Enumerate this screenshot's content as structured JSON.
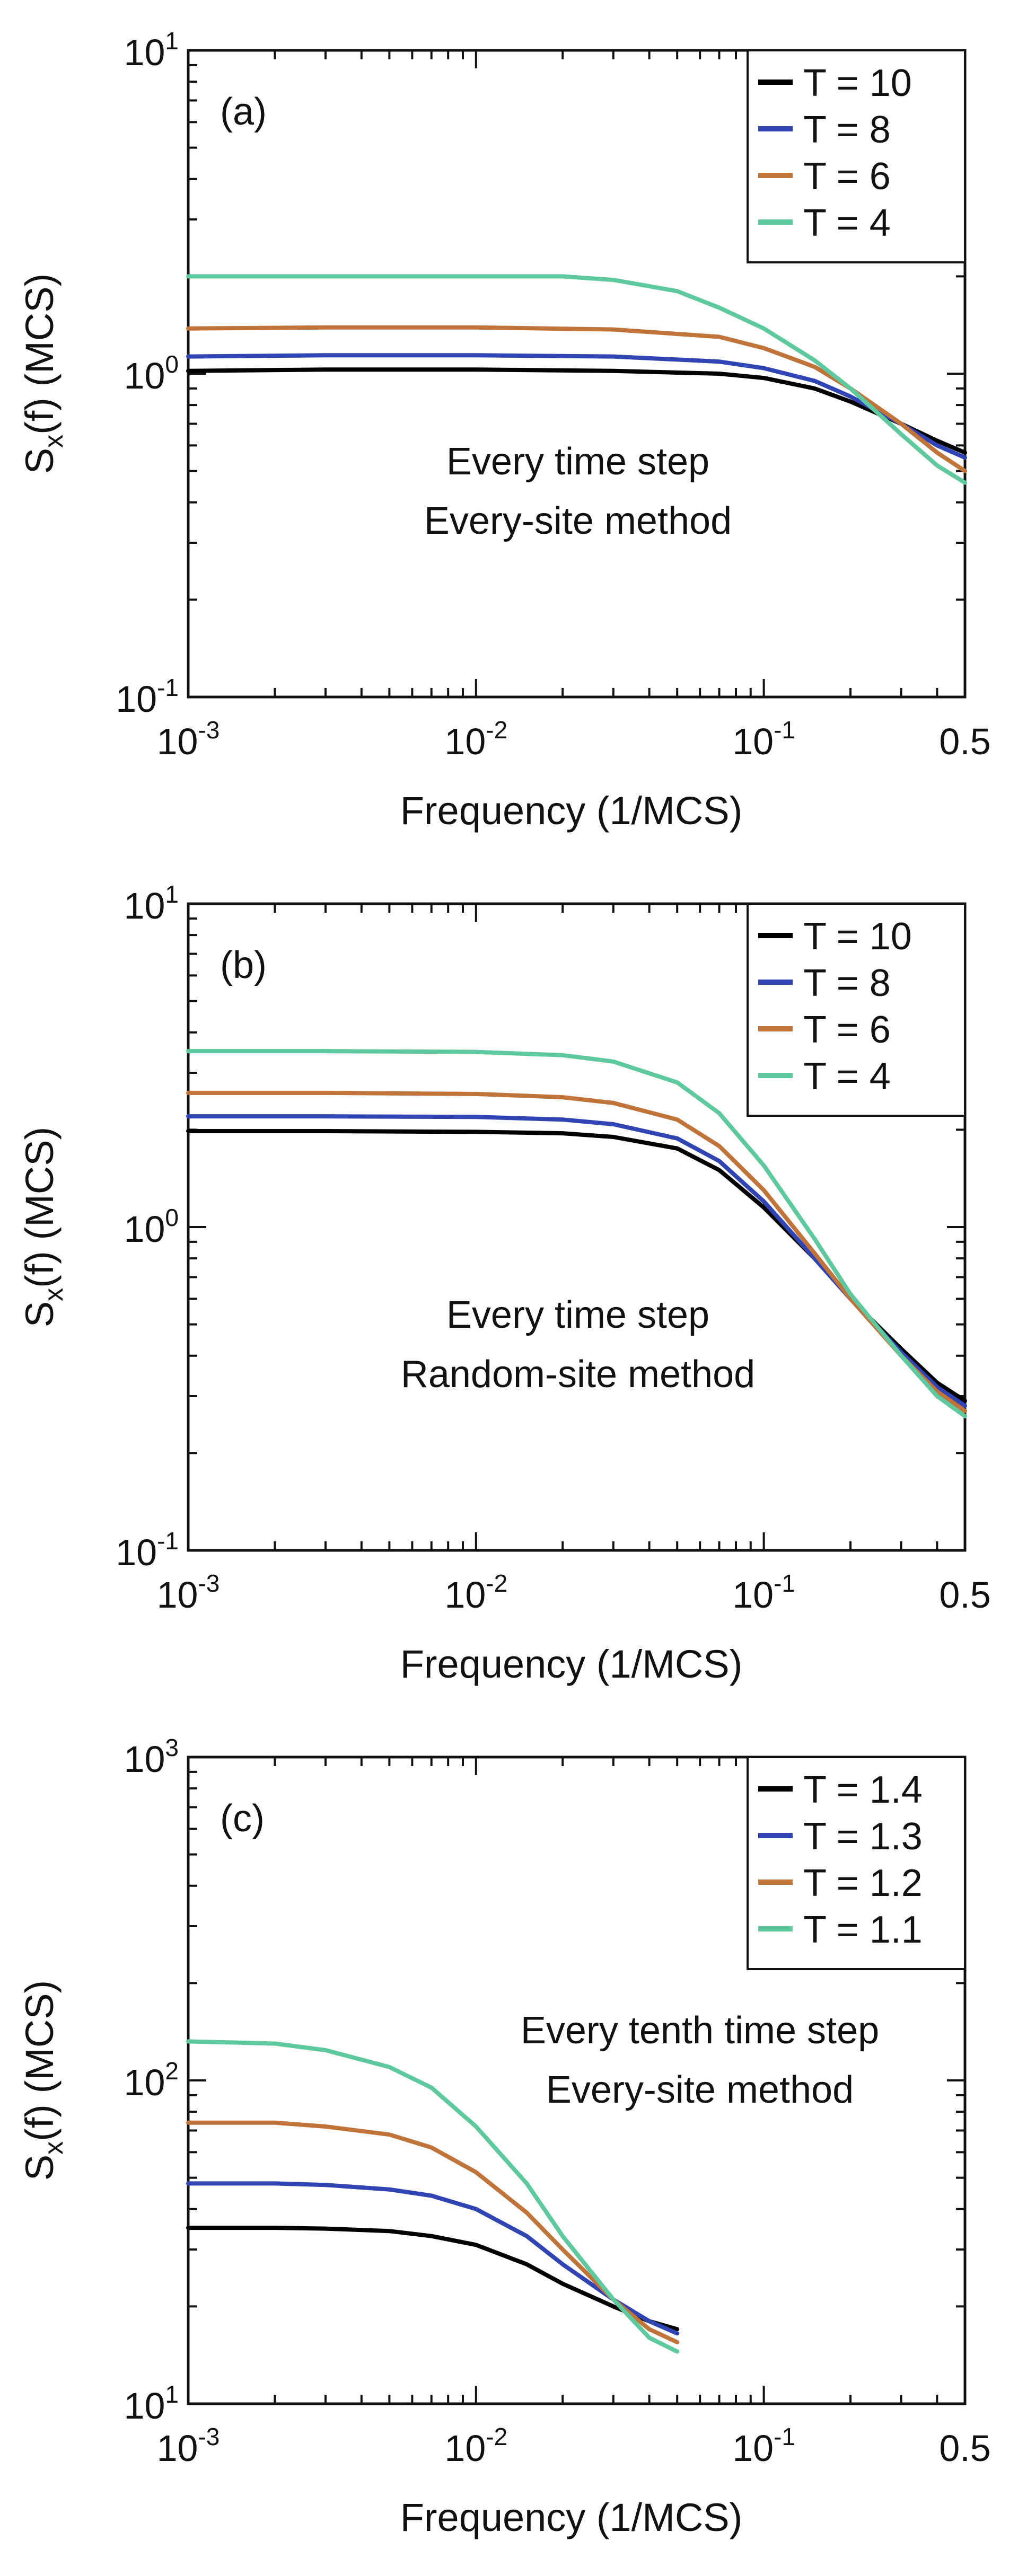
{
  "chart_data": [
    {
      "type": "line",
      "panel_label": "(a)",
      "xlabel": "Frequency (1/MCS)",
      "ylabel_main": "S",
      "ylabel_sub": "x",
      "ylabel_tail": "(f) (MCS)",
      "xscale": "log",
      "yscale": "log",
      "xlim": [
        0.001,
        0.5
      ],
      "ylim": [
        0.1,
        10
      ],
      "x_tick_labels": [
        {
          "base": "10",
          "exp": "-3"
        },
        {
          "base": "10",
          "exp": "-2"
        },
        {
          "base": "10",
          "exp": "-1"
        },
        {
          "base": "0.5",
          "exp": ""
        }
      ],
      "y_tick_labels": [
        {
          "base": "10",
          "exp": "-1"
        },
        {
          "base": "10",
          "exp": "0"
        },
        {
          "base": "10",
          "exp": "1"
        }
      ],
      "legend_position": "top-right",
      "annotation": [
        "Every time step",
        "Every-site method"
      ],
      "series": [
        {
          "name": "T = 10",
          "color": "#000000",
          "x": [
            0.001,
            0.003,
            0.01,
            0.03,
            0.07,
            0.1,
            0.15,
            0.2,
            0.3,
            0.4,
            0.5
          ],
          "y": [
            1.02,
            1.03,
            1.03,
            1.02,
            1.0,
            0.97,
            0.9,
            0.82,
            0.7,
            0.62,
            0.57
          ]
        },
        {
          "name": "T = 8",
          "color": "#3044b4",
          "x": [
            0.001,
            0.003,
            0.01,
            0.03,
            0.07,
            0.1,
            0.15,
            0.2,
            0.3,
            0.4,
            0.5
          ],
          "y": [
            1.13,
            1.14,
            1.14,
            1.13,
            1.09,
            1.04,
            0.95,
            0.85,
            0.7,
            0.6,
            0.55
          ]
        },
        {
          "name": "T = 6",
          "color": "#c0743a",
          "x": [
            0.001,
            0.003,
            0.01,
            0.03,
            0.07,
            0.1,
            0.15,
            0.2,
            0.3,
            0.4,
            0.5
          ],
          "y": [
            1.38,
            1.39,
            1.39,
            1.37,
            1.3,
            1.2,
            1.05,
            0.9,
            0.7,
            0.57,
            0.5
          ]
        },
        {
          "name": "T = 4",
          "color": "#5ec89e",
          "x": [
            0.001,
            0.003,
            0.01,
            0.02,
            0.03,
            0.05,
            0.07,
            0.1,
            0.15,
            0.2,
            0.3,
            0.4,
            0.5
          ],
          "y": [
            2.0,
            2.0,
            2.0,
            2.0,
            1.95,
            1.8,
            1.6,
            1.38,
            1.1,
            0.9,
            0.65,
            0.52,
            0.46
          ]
        }
      ]
    },
    {
      "type": "line",
      "panel_label": "(b)",
      "xlabel": "Frequency (1/MCS)",
      "ylabel_main": "S",
      "ylabel_sub": "x",
      "ylabel_tail": "(f) (MCS)",
      "xscale": "log",
      "yscale": "log",
      "xlim": [
        0.001,
        0.5
      ],
      "ylim": [
        0.1,
        10
      ],
      "x_tick_labels": [
        {
          "base": "10",
          "exp": "-3"
        },
        {
          "base": "10",
          "exp": "-2"
        },
        {
          "base": "10",
          "exp": "-1"
        },
        {
          "base": "0.5",
          "exp": ""
        }
      ],
      "y_tick_labels": [
        {
          "base": "10",
          "exp": "-1"
        },
        {
          "base": "10",
          "exp": "0"
        },
        {
          "base": "10",
          "exp": "1"
        }
      ],
      "legend_position": "top-right",
      "annotation": [
        "Every time step",
        "Random-site method"
      ],
      "series": [
        {
          "name": "T = 10",
          "color": "#000000",
          "x": [
            0.001,
            0.003,
            0.01,
            0.02,
            0.03,
            0.05,
            0.07,
            0.1,
            0.15,
            0.2,
            0.3,
            0.4,
            0.5
          ],
          "y": [
            1.98,
            1.98,
            1.97,
            1.95,
            1.9,
            1.75,
            1.5,
            1.15,
            0.8,
            0.6,
            0.42,
            0.33,
            0.29
          ]
        },
        {
          "name": "T = 8",
          "color": "#3044b4",
          "x": [
            0.001,
            0.003,
            0.01,
            0.02,
            0.03,
            0.05,
            0.07,
            0.1,
            0.15,
            0.2,
            0.3,
            0.4,
            0.5
          ],
          "y": [
            2.2,
            2.2,
            2.19,
            2.15,
            2.08,
            1.88,
            1.6,
            1.2,
            0.8,
            0.6,
            0.41,
            0.32,
            0.28
          ]
        },
        {
          "name": "T = 6",
          "color": "#c0743a",
          "x": [
            0.001,
            0.003,
            0.01,
            0.02,
            0.03,
            0.05,
            0.07,
            0.1,
            0.15,
            0.2,
            0.3,
            0.4,
            0.5
          ],
          "y": [
            2.6,
            2.6,
            2.58,
            2.52,
            2.42,
            2.15,
            1.78,
            1.3,
            0.83,
            0.6,
            0.4,
            0.31,
            0.27
          ]
        },
        {
          "name": "T = 4",
          "color": "#5ec89e",
          "x": [
            0.001,
            0.003,
            0.01,
            0.02,
            0.03,
            0.05,
            0.07,
            0.1,
            0.15,
            0.2,
            0.3,
            0.4,
            0.5
          ],
          "y": [
            3.5,
            3.5,
            3.48,
            3.4,
            3.25,
            2.8,
            2.25,
            1.55,
            0.92,
            0.62,
            0.4,
            0.3,
            0.26
          ]
        }
      ]
    },
    {
      "type": "line",
      "panel_label": "(c)",
      "xlabel": "Frequency (1/MCS)",
      "ylabel_main": "S",
      "ylabel_sub": "x",
      "ylabel_tail": "(f) (MCS)",
      "xscale": "log",
      "yscale": "log",
      "xlim": [
        0.001,
        0.5
      ],
      "ylim": [
        10,
        1000
      ],
      "x_tick_labels": [
        {
          "base": "10",
          "exp": "-3"
        },
        {
          "base": "10",
          "exp": "-2"
        },
        {
          "base": "10",
          "exp": "-1"
        },
        {
          "base": "0.5",
          "exp": ""
        }
      ],
      "y_tick_labels": [
        {
          "base": "10",
          "exp": "1"
        },
        {
          "base": "10",
          "exp": "2"
        },
        {
          "base": "10",
          "exp": "3"
        }
      ],
      "legend_position": "top-right",
      "annotation": [
        "Every tenth time step",
        "Every-site method"
      ],
      "series": [
        {
          "name": "T = 1.4",
          "color": "#000000",
          "x": [
            0.001,
            0.002,
            0.003,
            0.005,
            0.007,
            0.01,
            0.015,
            0.02,
            0.03,
            0.04,
            0.05
          ],
          "y": [
            35,
            35,
            34.8,
            34.2,
            33,
            31,
            27,
            23.5,
            20,
            18,
            17
          ]
        },
        {
          "name": "T = 1.3",
          "color": "#3044b4",
          "x": [
            0.001,
            0.002,
            0.003,
            0.005,
            0.007,
            0.01,
            0.015,
            0.02,
            0.03,
            0.04,
            0.05
          ],
          "y": [
            48,
            48,
            47.5,
            46,
            44,
            40,
            33,
            27,
            21,
            18,
            16.5
          ]
        },
        {
          "name": "T = 1.2",
          "color": "#c0743a",
          "x": [
            0.001,
            0.002,
            0.003,
            0.005,
            0.007,
            0.01,
            0.015,
            0.02,
            0.03,
            0.04,
            0.05
          ],
          "y": [
            74,
            74,
            72,
            68,
            62,
            52,
            39,
            30,
            21,
            17,
            15.5
          ]
        },
        {
          "name": "T = 1.1",
          "color": "#5ec89e",
          "x": [
            0.001,
            0.002,
            0.003,
            0.005,
            0.007,
            0.01,
            0.015,
            0.02,
            0.03,
            0.04,
            0.05
          ],
          "y": [
            132,
            130,
            124,
            110,
            95,
            72,
            48,
            33,
            21,
            16,
            14.5
          ]
        }
      ]
    }
  ]
}
